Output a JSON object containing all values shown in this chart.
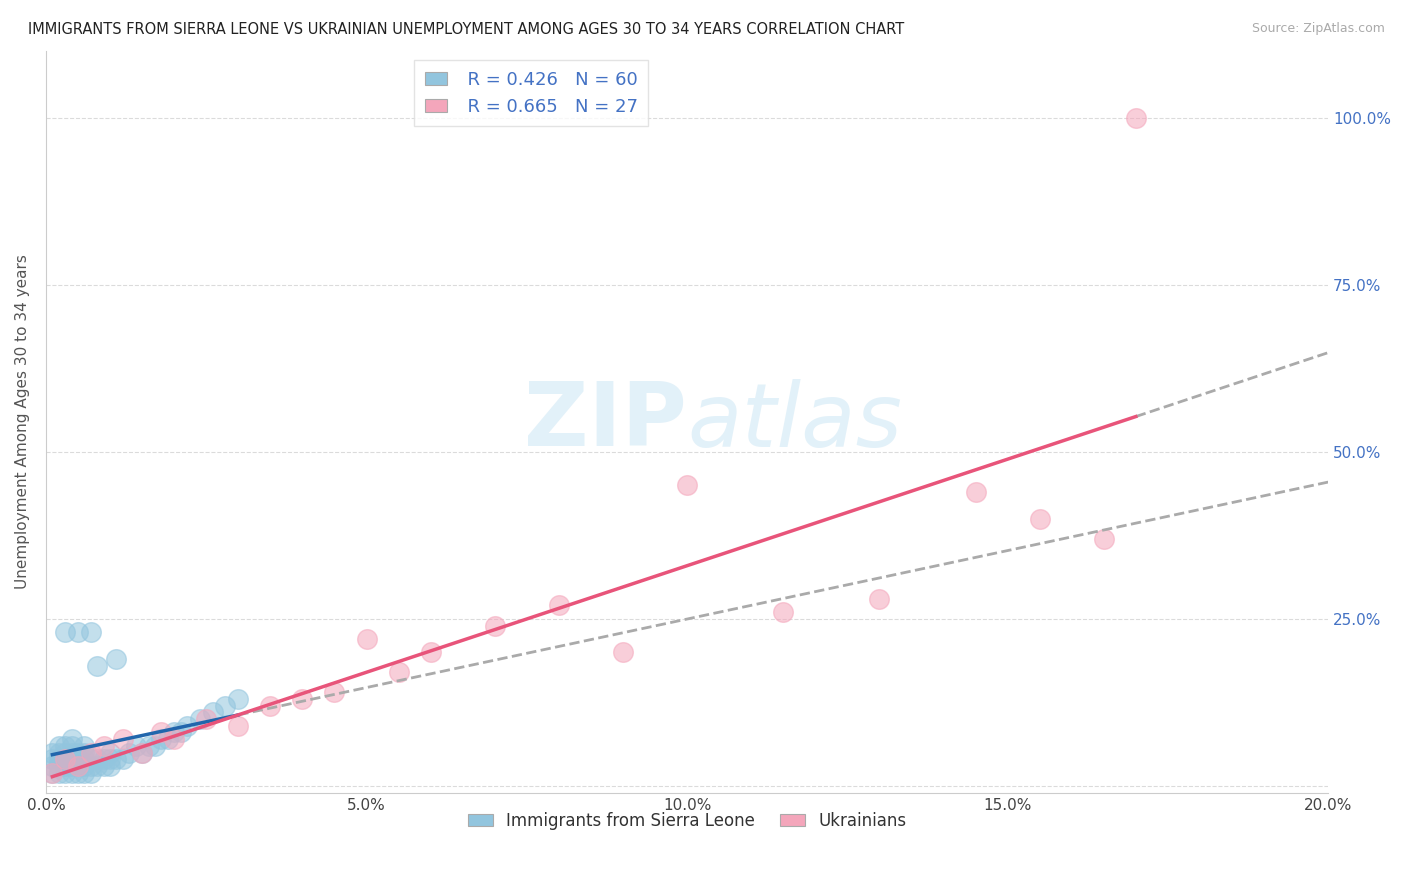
{
  "title": "IMMIGRANTS FROM SIERRA LEONE VS UKRAINIAN UNEMPLOYMENT AMONG AGES 30 TO 34 YEARS CORRELATION CHART",
  "source": "Source: ZipAtlas.com",
  "ylabel": "Unemployment Among Ages 30 to 34 years",
  "legend_labels": [
    "Immigrants from Sierra Leone",
    "Ukrainians"
  ],
  "r_blue": 0.426,
  "n_blue": 60,
  "r_pink": 0.665,
  "n_pink": 27,
  "blue_color": "#92c5de",
  "pink_color": "#f4a6bb",
  "blue_line_color": "#2166ac",
  "pink_line_color": "#e8547a",
  "dashed_line_color": "#aaaaaa",
  "axis_color": "#4472c4",
  "watermark_color": "#d0e8f5",
  "xlim": [
    0.0,
    0.2
  ],
  "ylim": [
    -0.01,
    1.1
  ],
  "xticks": [
    0.0,
    0.05,
    0.1,
    0.15,
    0.2
  ],
  "xtick_labels": [
    "0.0%",
    "5.0%",
    "10.0%",
    "15.0%",
    "20.0%"
  ],
  "yticks": [
    0.0,
    0.25,
    0.5,
    0.75,
    1.0
  ],
  "ytick_labels_right": [
    "",
    "25.0%",
    "50.0%",
    "75.0%",
    "100.0%"
  ],
  "blue_x": [
    0.001,
    0.001,
    0.001,
    0.001,
    0.002,
    0.002,
    0.002,
    0.002,
    0.002,
    0.003,
    0.003,
    0.003,
    0.003,
    0.003,
    0.003,
    0.004,
    0.004,
    0.004,
    0.004,
    0.004,
    0.004,
    0.005,
    0.005,
    0.005,
    0.005,
    0.005,
    0.006,
    0.006,
    0.006,
    0.006,
    0.006,
    0.007,
    0.007,
    0.007,
    0.007,
    0.008,
    0.008,
    0.008,
    0.009,
    0.009,
    0.01,
    0.01,
    0.01,
    0.011,
    0.011,
    0.012,
    0.013,
    0.014,
    0.015,
    0.016,
    0.017,
    0.018,
    0.019,
    0.02,
    0.021,
    0.022,
    0.024,
    0.026,
    0.028,
    0.03
  ],
  "blue_y": [
    0.02,
    0.03,
    0.04,
    0.05,
    0.02,
    0.03,
    0.04,
    0.05,
    0.06,
    0.02,
    0.03,
    0.04,
    0.05,
    0.06,
    0.23,
    0.02,
    0.03,
    0.04,
    0.05,
    0.06,
    0.07,
    0.02,
    0.03,
    0.04,
    0.05,
    0.23,
    0.02,
    0.03,
    0.04,
    0.05,
    0.06,
    0.02,
    0.03,
    0.04,
    0.23,
    0.03,
    0.04,
    0.18,
    0.03,
    0.04,
    0.03,
    0.04,
    0.05,
    0.04,
    0.19,
    0.04,
    0.05,
    0.06,
    0.05,
    0.06,
    0.06,
    0.07,
    0.07,
    0.08,
    0.08,
    0.09,
    0.1,
    0.11,
    0.12,
    0.13
  ],
  "pink_x": [
    0.001,
    0.003,
    0.005,
    0.007,
    0.009,
    0.012,
    0.015,
    0.018,
    0.02,
    0.025,
    0.03,
    0.035,
    0.04,
    0.045,
    0.05,
    0.055,
    0.06,
    0.07,
    0.08,
    0.09,
    0.1,
    0.115,
    0.13,
    0.145,
    0.155,
    0.165,
    0.17
  ],
  "pink_y": [
    0.02,
    0.04,
    0.03,
    0.05,
    0.06,
    0.07,
    0.05,
    0.08,
    0.07,
    0.1,
    0.09,
    0.12,
    0.13,
    0.14,
    0.22,
    0.17,
    0.2,
    0.24,
    0.27,
    0.2,
    0.45,
    0.26,
    0.28,
    0.44,
    0.4,
    0.37,
    1.0
  ]
}
